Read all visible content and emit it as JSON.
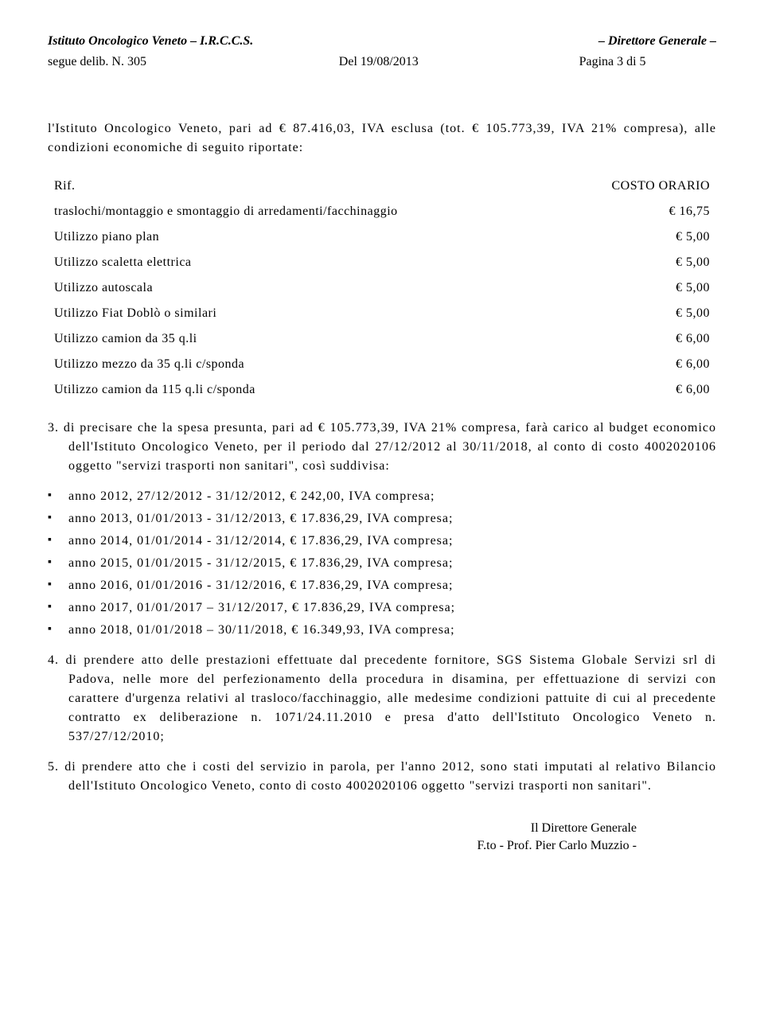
{
  "header": {
    "institute": "Istituto Oncologico Veneto – I.R.C.C.S.",
    "director": "– Direttore Generale –",
    "segue": "segue delib. N. 305",
    "date": "Del 19/08/2013",
    "page": "Pagina 3 di 5"
  },
  "intro": "l'Istituto Oncologico Veneto, pari ad € 87.416,03, IVA esclusa (tot. € 105.773,39, IVA 21% compresa), alle condizioni economiche di seguito riportate:",
  "table": {
    "header_left": "Rif.",
    "header_right": "COSTO ORARIO",
    "rows": [
      {
        "label": "traslochi/montaggio e smontaggio di arredamenti/facchinaggio",
        "value": "€ 16,75"
      },
      {
        "label": "Utilizzo piano plan",
        "value": "€ 5,00"
      },
      {
        "label": "Utilizzo scaletta elettrica",
        "value": "€ 5,00"
      },
      {
        "label": "Utilizzo autoscala",
        "value": "€ 5,00"
      },
      {
        "label": "Utilizzo Fiat Doblò o similari",
        "value": "€ 5,00"
      },
      {
        "label": "Utilizzo camion da 35 q.li",
        "value": "€ 6,00"
      },
      {
        "label": "Utilizzo mezzo da 35 q.li c/sponda",
        "value": "€ 6,00"
      },
      {
        "label": "Utilizzo camion da 115 q.li c/sponda",
        "value": "€ 6,00"
      }
    ]
  },
  "point3": "3. di precisare che la spesa presunta, pari ad € 105.773,39, IVA 21% compresa, farà carico al budget economico dell'Istituto Oncologico Veneto, per il periodo dal 27/12/2012 al 30/11/2018, al conto di costo 4002020106 oggetto \"servizi trasporti non sanitari\", così suddivisa:",
  "bullets": [
    "anno 2012, 27/12/2012 - 31/12/2012, €    242,00, IVA compresa;",
    "anno 2013, 01/01/2013 - 31/12/2013, € 17.836,29, IVA compresa;",
    "anno 2014, 01/01/2014 - 31/12/2014, € 17.836,29, IVA compresa;",
    "anno 2015, 01/01/2015 - 31/12/2015, € 17.836,29, IVA compresa;",
    "anno 2016, 01/01/2016 - 31/12/2016, € 17.836,29, IVA compresa;",
    "anno 2017, 01/01/2017 – 31/12/2017, € 17.836,29, IVA compresa;",
    "anno 2018, 01/01/2018 – 30/11/2018, € 16.349,93, IVA compresa;"
  ],
  "point4": "4. di prendere atto delle prestazioni effettuate dal precedente fornitore, SGS Sistema Globale Servizi srl di Padova, nelle more del perfezionamento della procedura in disamina, per effettuazione di servizi con carattere d'urgenza relativi al trasloco/facchinaggio, alle medesime condizioni pattuite di cui al precedente contratto ex deliberazione n. 1071/24.11.2010 e presa d'atto dell'Istituto Oncologico Veneto n. 537/27/12/2010;",
  "point5": "5. di prendere atto che i costi del servizio in parola, per l'anno 2012, sono stati imputati al relativo Bilancio dell'Istituto Oncologico Veneto, conto di costo 4002020106 oggetto \"servizi trasporti non sanitari\".",
  "signature": {
    "line1": "Il Direttore Generale",
    "line2": "F.to - Prof. Pier Carlo Muzzio -"
  }
}
